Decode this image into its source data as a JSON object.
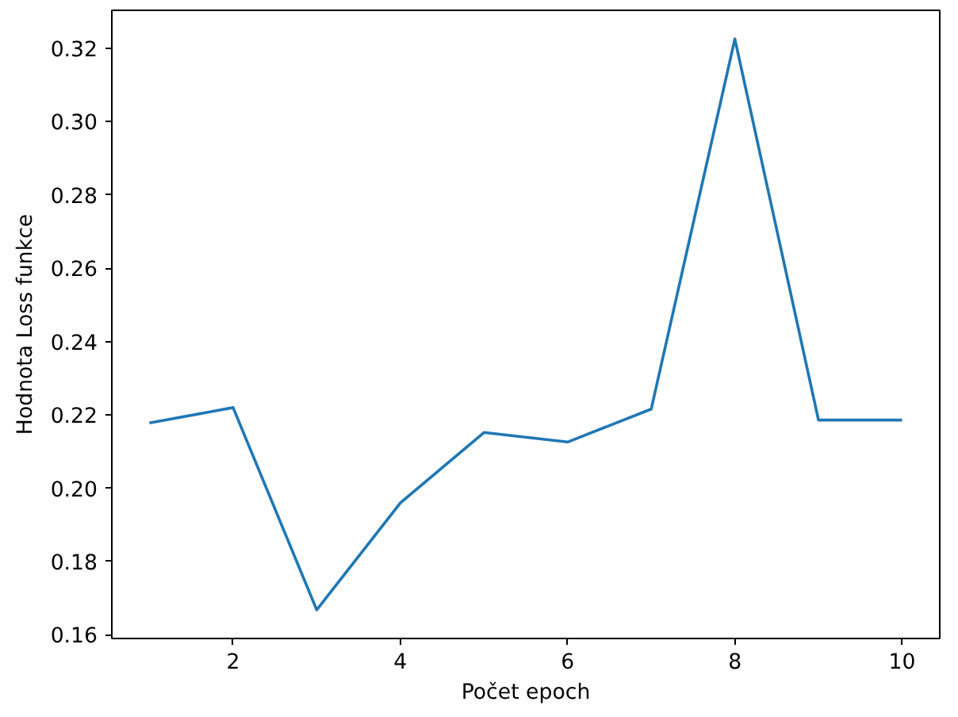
{
  "chart_data": {
    "type": "line",
    "xlabel": "Počet epoch",
    "ylabel": "Hodnota Loss funkce",
    "x": [
      1,
      2,
      3,
      4,
      5,
      6,
      7,
      8,
      9,
      10
    ],
    "series": [
      {
        "color": "#1f77b4",
        "values": [
          0.2178,
          0.222,
          0.1668,
          0.196,
          0.2152,
          0.2126,
          0.2216,
          0.3226,
          0.2186,
          0.2186
        ]
      }
    ],
    "xlim": [
      0.55,
      10.45
    ],
    "ylim": [
      0.159,
      0.3304
    ],
    "xticks": [
      2,
      4,
      6,
      8,
      10
    ],
    "yticks": [
      {
        "value": 0.16,
        "label": "0.16"
      },
      {
        "value": 0.18,
        "label": "0.18"
      },
      {
        "value": 0.2,
        "label": "0.20"
      },
      {
        "value": 0.22,
        "label": "0.22"
      },
      {
        "value": 0.24,
        "label": "0.24"
      },
      {
        "value": 0.26,
        "label": "0.26"
      },
      {
        "value": 0.28,
        "label": "0.28"
      },
      {
        "value": 0.3,
        "label": "0.30"
      },
      {
        "value": 0.32,
        "label": "0.32"
      }
    ],
    "grid": false
  }
}
